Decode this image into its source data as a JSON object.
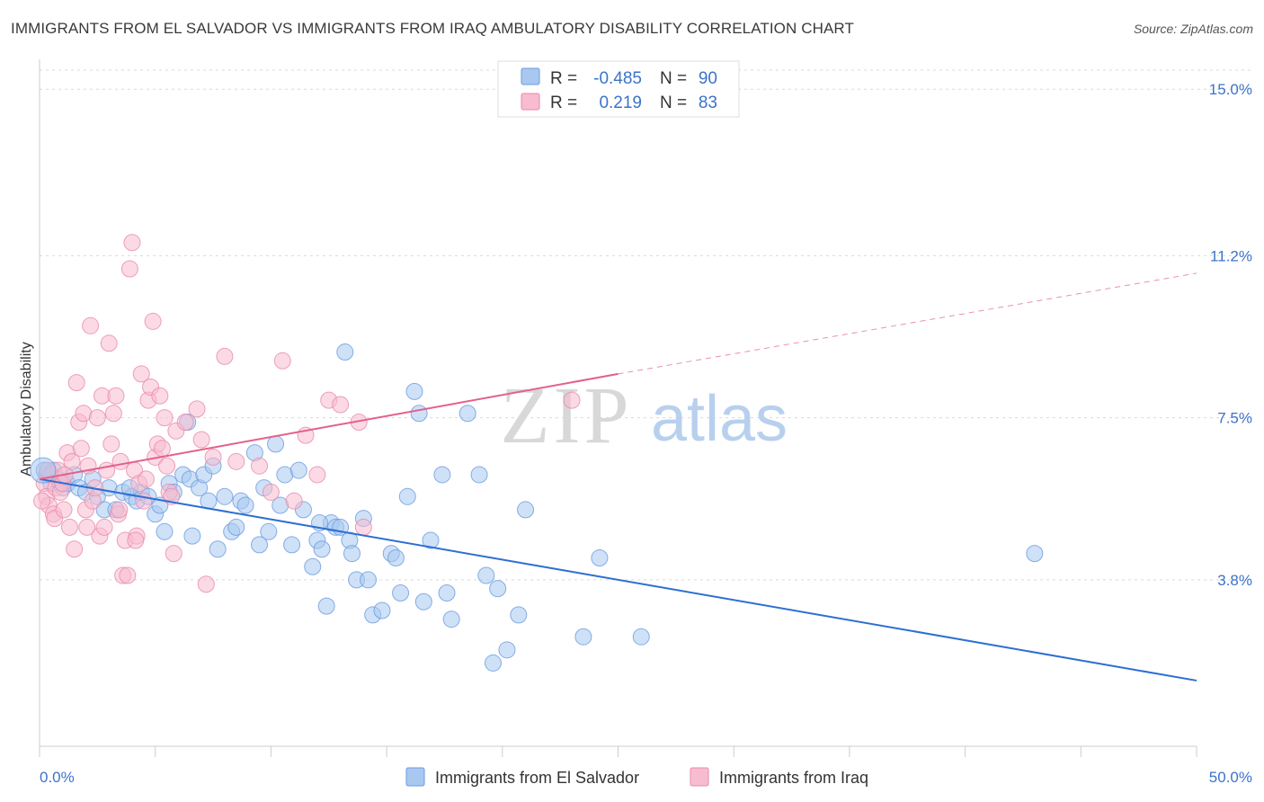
{
  "title": "IMMIGRANTS FROM EL SALVADOR VS IMMIGRANTS FROM IRAQ AMBULATORY DISABILITY CORRELATION CHART",
  "source": "Source: ZipAtlas.com",
  "watermark": {
    "zip": "ZIP",
    "atlas": "atlas"
  },
  "legend_top": [
    {
      "r_label": "R =",
      "r_value": "-0.485",
      "n_label": "N =",
      "n_value": "90",
      "color": "#a8c8f0",
      "stroke": "#6a9be0"
    },
    {
      "r_label": "R =",
      "r_value": "0.219",
      "n_label": "N =",
      "n_value": "83",
      "color": "#f7bcd0",
      "stroke": "#e88aa8"
    }
  ],
  "chart_data": {
    "type": "scatter",
    "title": "IMMIGRANTS FROM EL SALVADOR VS IMMIGRANTS FROM IRAQ AMBULATORY DISABILITY CORRELATION CHART",
    "xlabel": "",
    "ylabel": "Ambulatory Disability",
    "xlim": [
      0,
      50
    ],
    "ylim": [
      0,
      15.6
    ],
    "x_tick_labels": [
      "0.0%",
      "50.0%"
    ],
    "y_ticks": [
      3.8,
      7.5,
      11.2,
      15.0
    ],
    "y_tick_labels": [
      "3.8%",
      "7.5%",
      "11.2%",
      "15.0%"
    ],
    "grid": true,
    "legend_position": "bottom",
    "series": [
      {
        "name": "Immigrants from El Salvador",
        "color": "#6a9be0",
        "fill": "#a8c8f0",
        "trend": {
          "x": [
            0,
            50
          ],
          "y": [
            6.1,
            1.5
          ],
          "style": "solid",
          "color": "#2d6fd1"
        },
        "points": [
          [
            0.3,
            6.2
          ],
          [
            0.5,
            6.0
          ],
          [
            0.6,
            6.3
          ],
          [
            0.8,
            6.1
          ],
          [
            1.0,
            5.9
          ],
          [
            1.2,
            6.0
          ],
          [
            1.5,
            6.2
          ],
          [
            1.7,
            5.9
          ],
          [
            2.0,
            5.8
          ],
          [
            2.3,
            6.1
          ],
          [
            2.5,
            5.7
          ],
          [
            2.8,
            5.4
          ],
          [
            3.0,
            5.9
          ],
          [
            3.3,
            5.4
          ],
          [
            3.6,
            5.8
          ],
          [
            4.0,
            5.7
          ],
          [
            4.2,
            5.6
          ],
          [
            4.4,
            5.8
          ],
          [
            4.7,
            5.7
          ],
          [
            5.0,
            5.3
          ],
          [
            5.2,
            5.5
          ],
          [
            5.4,
            4.9
          ],
          [
            5.6,
            6.0
          ],
          [
            5.8,
            5.8
          ],
          [
            6.2,
            6.2
          ],
          [
            6.4,
            7.4
          ],
          [
            6.5,
            6.1
          ],
          [
            6.6,
            4.8
          ],
          [
            6.9,
            5.9
          ],
          [
            7.1,
            6.2
          ],
          [
            7.3,
            5.6
          ],
          [
            7.5,
            6.4
          ],
          [
            7.7,
            4.5
          ],
          [
            8.0,
            5.7
          ],
          [
            8.3,
            4.9
          ],
          [
            8.5,
            5.0
          ],
          [
            8.7,
            5.6
          ],
          [
            8.9,
            5.5
          ],
          [
            9.3,
            6.7
          ],
          [
            9.5,
            4.6
          ],
          [
            9.7,
            5.9
          ],
          [
            9.9,
            4.9
          ],
          [
            10.2,
            6.9
          ],
          [
            10.4,
            5.5
          ],
          [
            10.6,
            6.2
          ],
          [
            10.9,
            4.6
          ],
          [
            11.2,
            6.3
          ],
          [
            11.4,
            5.4
          ],
          [
            11.8,
            4.1
          ],
          [
            12.0,
            4.7
          ],
          [
            12.2,
            4.5
          ],
          [
            12.4,
            3.2
          ],
          [
            12.6,
            5.1
          ],
          [
            12.8,
            5.0
          ],
          [
            13.0,
            5.0
          ],
          [
            13.2,
            9.0
          ],
          [
            13.4,
            4.7
          ],
          [
            13.5,
            4.4
          ],
          [
            13.7,
            3.8
          ],
          [
            14.0,
            5.2
          ],
          [
            14.2,
            3.8
          ],
          [
            14.4,
            3.0
          ],
          [
            14.8,
            3.1
          ],
          [
            15.2,
            4.4
          ],
          [
            15.4,
            4.3
          ],
          [
            15.6,
            3.5
          ],
          [
            15.9,
            5.7
          ],
          [
            16.2,
            8.1
          ],
          [
            16.4,
            7.6
          ],
          [
            16.6,
            3.3
          ],
          [
            16.9,
            4.7
          ],
          [
            17.4,
            6.2
          ],
          [
            17.6,
            3.5
          ],
          [
            17.8,
            2.9
          ],
          [
            18.5,
            7.6
          ],
          [
            19.0,
            6.2
          ],
          [
            19.3,
            3.9
          ],
          [
            19.6,
            1.9
          ],
          [
            19.8,
            3.6
          ],
          [
            20.2,
            2.2
          ],
          [
            20.7,
            3.0
          ],
          [
            21.0,
            5.4
          ],
          [
            23.5,
            2.5
          ],
          [
            24.2,
            4.3
          ],
          [
            26.0,
            2.5
          ],
          [
            43.0,
            4.4
          ],
          [
            0.2,
            6.3
          ],
          [
            0.9,
            6.0
          ],
          [
            3.9,
            5.9
          ],
          [
            12.1,
            5.1
          ]
        ]
      },
      {
        "name": "Immigrants from Iraq",
        "color": "#e88aa8",
        "fill": "#f7bcd0",
        "trend": {
          "x": [
            0,
            25,
            50
          ],
          "y": [
            6.1,
            8.5,
            10.8
          ],
          "solid_until": 25,
          "color": "#e4608a"
        },
        "points": [
          [
            0.2,
            6.0
          ],
          [
            0.3,
            5.7
          ],
          [
            0.4,
            5.5
          ],
          [
            0.5,
            6.2
          ],
          [
            0.6,
            5.3
          ],
          [
            0.7,
            5.9
          ],
          [
            0.8,
            6.3
          ],
          [
            0.9,
            5.8
          ],
          [
            1.0,
            6.0
          ],
          [
            1.1,
            6.2
          ],
          [
            1.2,
            6.7
          ],
          [
            1.3,
            5.0
          ],
          [
            1.4,
            6.5
          ],
          [
            1.5,
            4.5
          ],
          [
            1.6,
            8.3
          ],
          [
            1.7,
            7.4
          ],
          [
            1.8,
            6.8
          ],
          [
            1.9,
            7.6
          ],
          [
            2.0,
            5.4
          ],
          [
            2.1,
            6.4
          ],
          [
            2.2,
            9.6
          ],
          [
            2.3,
            5.6
          ],
          [
            2.4,
            5.9
          ],
          [
            2.5,
            7.5
          ],
          [
            2.6,
            4.8
          ],
          [
            2.7,
            8.0
          ],
          [
            2.8,
            5.0
          ],
          [
            2.9,
            6.3
          ],
          [
            3.0,
            9.2
          ],
          [
            3.1,
            6.9
          ],
          [
            3.2,
            7.6
          ],
          [
            3.3,
            8.0
          ],
          [
            3.4,
            5.3
          ],
          [
            3.5,
            6.5
          ],
          [
            3.6,
            3.9
          ],
          [
            3.7,
            4.7
          ],
          [
            3.8,
            3.9
          ],
          [
            3.9,
            10.9
          ],
          [
            4.0,
            11.5
          ],
          [
            4.1,
            6.3
          ],
          [
            4.2,
            4.8
          ],
          [
            4.3,
            6.0
          ],
          [
            4.4,
            8.5
          ],
          [
            4.5,
            5.6
          ],
          [
            4.6,
            6.1
          ],
          [
            4.7,
            7.9
          ],
          [
            4.8,
            8.2
          ],
          [
            4.9,
            9.7
          ],
          [
            5.0,
            6.6
          ],
          [
            5.1,
            6.9
          ],
          [
            5.2,
            8.0
          ],
          [
            5.3,
            6.8
          ],
          [
            5.4,
            7.5
          ],
          [
            5.5,
            6.4
          ],
          [
            5.6,
            5.8
          ],
          [
            5.7,
            5.7
          ],
          [
            5.8,
            4.4
          ],
          [
            5.9,
            7.2
          ],
          [
            6.3,
            7.4
          ],
          [
            6.8,
            7.7
          ],
          [
            7.0,
            7.0
          ],
          [
            7.2,
            3.7
          ],
          [
            7.5,
            6.6
          ],
          [
            8.0,
            8.9
          ],
          [
            8.5,
            6.5
          ],
          [
            9.5,
            6.4
          ],
          [
            10.0,
            5.8
          ],
          [
            10.5,
            8.8
          ],
          [
            11.0,
            5.6
          ],
          [
            11.5,
            7.1
          ],
          [
            12.0,
            6.2
          ],
          [
            12.5,
            7.9
          ],
          [
            13.0,
            7.8
          ],
          [
            13.8,
            7.4
          ],
          [
            14.0,
            5.0
          ],
          [
            23.0,
            7.9
          ],
          [
            0.1,
            5.6
          ],
          [
            0.35,
            6.3
          ],
          [
            0.65,
            5.2
          ],
          [
            1.05,
            5.4
          ],
          [
            2.05,
            5.0
          ],
          [
            3.45,
            5.4
          ],
          [
            4.15,
            4.7
          ]
        ]
      }
    ]
  },
  "bottom_legend": [
    {
      "label": "Immigrants from El Salvador",
      "fill": "#a8c8f0",
      "stroke": "#6a9be0"
    },
    {
      "label": "Immigrants from Iraq",
      "fill": "#f7bcd0",
      "stroke": "#e88aa8"
    }
  ]
}
